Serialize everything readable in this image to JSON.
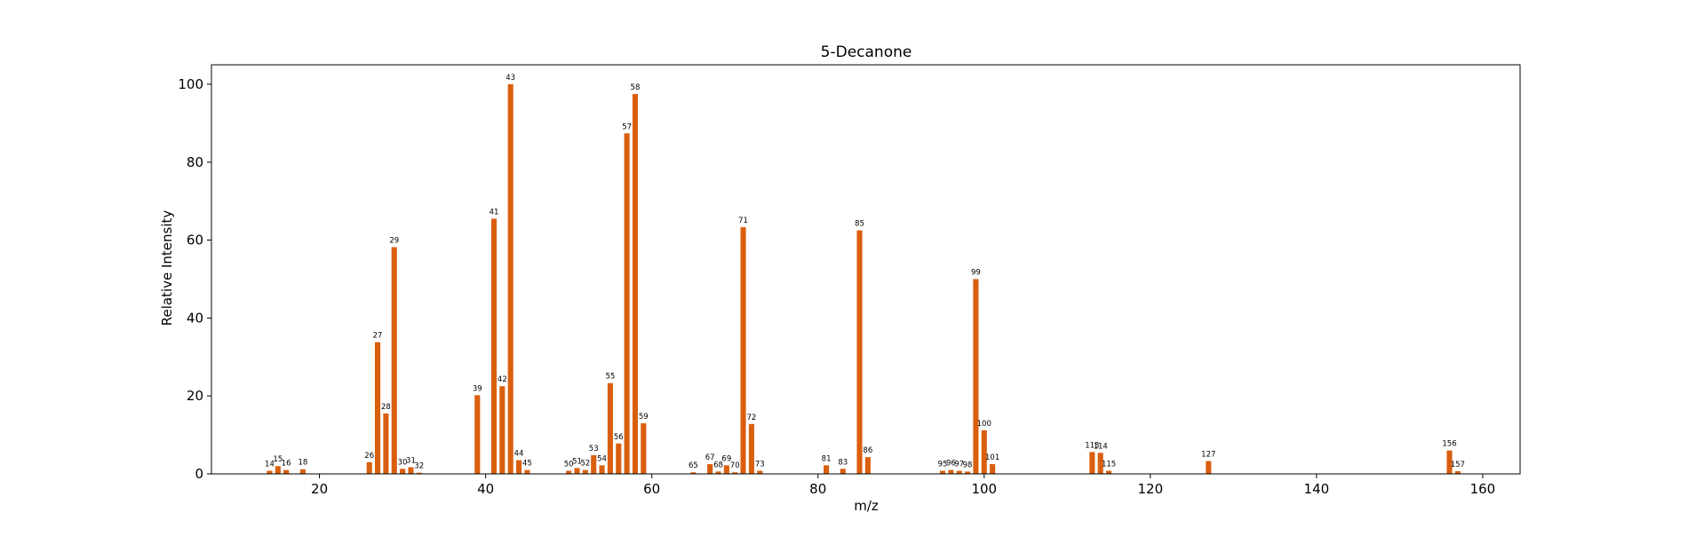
{
  "chart_data": {
    "type": "bar",
    "title": "5-Decanone",
    "xlabel": "m/z",
    "ylabel": "Relative Intensity",
    "xlim": [
      7,
      164.5
    ],
    "ylim": [
      0,
      105
    ],
    "xticks": [
      20,
      40,
      60,
      80,
      100,
      120,
      140,
      160
    ],
    "yticks": [
      0,
      20,
      40,
      60,
      80,
      100
    ],
    "bar_color": "#d95f0e",
    "grid": false,
    "legend": "none",
    "x": [
      14,
      15,
      16,
      18,
      26,
      27,
      28,
      29,
      30,
      31,
      32,
      39,
      41,
      42,
      43,
      44,
      45,
      50,
      51,
      52,
      53,
      54,
      55,
      56,
      57,
      58,
      59,
      65,
      67,
      68,
      69,
      70,
      71,
      72,
      73,
      81,
      83,
      85,
      86,
      95,
      96,
      97,
      98,
      99,
      100,
      101,
      113,
      114,
      115,
      127,
      156,
      157
    ],
    "values": [
      0.8,
      2.0,
      1.0,
      1.2,
      3.0,
      33.8,
      15.5,
      58.2,
      1.3,
      1.7,
      0.3,
      20.2,
      65.5,
      22.5,
      100,
      3.5,
      1.0,
      0.8,
      1.5,
      1.0,
      4.8,
      2.2,
      23.3,
      7.8,
      87.4,
      97.5,
      13.0,
      0.4,
      2.5,
      0.6,
      2.2,
      0.4,
      63.3,
      12.8,
      0.8,
      2.2,
      1.3,
      62.5,
      4.3,
      0.8,
      1.0,
      0.8,
      0.6,
      50.0,
      11.2,
      2.5,
      5.6,
      5.4,
      0.8,
      3.3,
      6.0,
      0.7
    ],
    "labels": [
      "14",
      "15",
      "16",
      "18",
      "26",
      "27",
      "28",
      "29",
      "30",
      "31",
      "32",
      "39",
      "41",
      "42",
      "43",
      "44",
      "45",
      "50",
      "51",
      "52",
      "53",
      "54",
      "55",
      "56",
      "57",
      "58",
      "59",
      "65",
      "67",
      "68",
      "69",
      "70",
      "71",
      "72",
      "73",
      "81",
      "83",
      "85",
      "86",
      "95",
      "96",
      "97",
      "98",
      "99",
      "100",
      "101",
      "113",
      "114",
      "115",
      "127",
      "156",
      "157"
    ]
  }
}
